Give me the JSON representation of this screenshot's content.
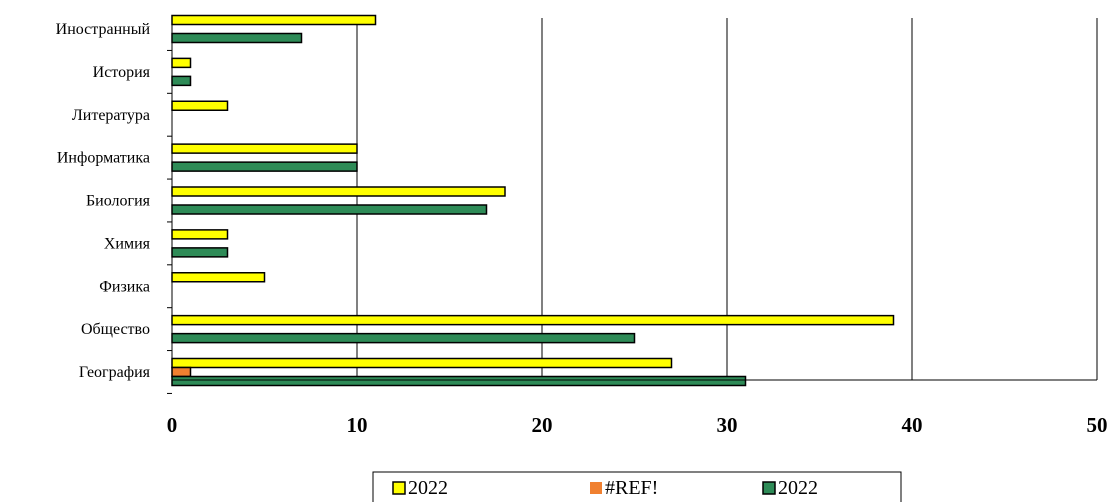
{
  "chart_data": {
    "type": "bar",
    "orientation": "horizontal",
    "categories": [
      "География",
      "Общество",
      "Физика",
      "Химия",
      "Биология",
      "Информатика",
      "Литература",
      "История",
      "Иностранный"
    ],
    "series": [
      {
        "name": "2022",
        "color": "#FFFF00",
        "values": [
          27,
          39,
          5,
          3,
          18,
          10,
          3,
          1,
          11
        ]
      },
      {
        "name": "#REF!",
        "color": "#F08030",
        "values": [
          1,
          0,
          0,
          0,
          0,
          0,
          0,
          0,
          0
        ]
      },
      {
        "name": "2022",
        "color": "#2E8B57",
        "values": [
          31,
          25,
          0,
          3,
          17,
          10,
          0,
          1,
          7
        ]
      }
    ],
    "xlim": [
      0,
      50
    ],
    "x_ticks": [
      "0",
      "10",
      "20",
      "30",
      "40",
      "50"
    ],
    "grid": "vertical major gridlines",
    "legend": "bottom-center",
    "title": "",
    "xlabel": "",
    "ylabel": ""
  }
}
